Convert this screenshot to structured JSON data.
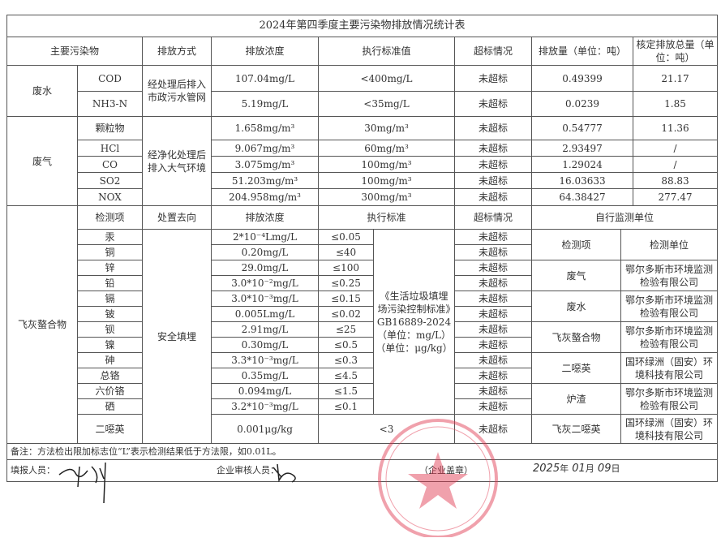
{
  "title": "2024年第四季度主要污染物排放情况统计表",
  "top_headers": {
    "pollutant": "主要污染物",
    "method": "排放方式",
    "conc": "排放浓度",
    "standard": "执行标准值",
    "exceed": "超标情况",
    "amount": "排放量（单位：吨）",
    "approved": "核定排放总量（单位：吨）"
  },
  "wastewater": {
    "label": "废水",
    "method": "经处理后排入市政污水管网",
    "rows": [
      {
        "item": "COD",
        "conc": "107.04mg/L",
        "std": "<400mg/L",
        "exceed": "未超标",
        "amount": "0.49399",
        "approved": "21.17"
      },
      {
        "item": "NH3-N",
        "conc": "5.19mg/L",
        "std": "<35mg/L",
        "exceed": "未超标",
        "amount": "0.0239",
        "approved": "1.85"
      }
    ]
  },
  "exhaust": {
    "label": "废气",
    "method": "经净化处理后排入大气环境",
    "rows": [
      {
        "item": "颗粒物",
        "conc": "1.658mg/m³",
        "std": "30mg/m³",
        "exceed": "未超标",
        "amount": "0.54777",
        "approved": "11.36"
      },
      {
        "item": "HCl",
        "conc": "9.067mg/m³",
        "std": "60mg/m³",
        "exceed": "未超标",
        "amount": "2.93497",
        "approved": "/"
      },
      {
        "item": "CO",
        "conc": "3.075mg/m³",
        "std": "100mg/m³",
        "exceed": "未超标",
        "amount": "1.29024",
        "approved": "/"
      },
      {
        "item": "SO2",
        "conc": "51.203mg/m³",
        "std": "100mg/m³",
        "exceed": "未超标",
        "amount": "16.03633",
        "approved": "88.83"
      },
      {
        "item": "NOX",
        "conc": "204.958mg/m³",
        "std": "300mg/m³",
        "exceed": "未超标",
        "amount": "64.38427",
        "approved": "277.47"
      }
    ]
  },
  "flyash": {
    "label": "飞灰螯合物",
    "method": "安全填埋",
    "headers": {
      "item": "检测项",
      "method": "处置去向",
      "conc": "排放浓度",
      "standard": "执行标准",
      "exceed": "超标情况",
      "monitor": "自行监测单位",
      "m_item": "检测项",
      "m_unit": "检测单位"
    },
    "standard_text": "《生活垃圾填埋场污染控制标准》GB16889-2024（单位：mg/L）（单位：μg/kg）",
    "rows": [
      {
        "item": "汞",
        "conc": "2*10⁻⁴Lmg/L",
        "limit": "≤0.05",
        "exceed": "未超标"
      },
      {
        "item": "铜",
        "conc": "0.20mg/L",
        "limit": "≤40",
        "exceed": "未超标"
      },
      {
        "item": "锌",
        "conc": "29.0mg/L",
        "limit": "≤100",
        "exceed": "未超标"
      },
      {
        "item": "铅",
        "conc": "3.0*10⁻²mg/L",
        "limit": "≤0.25",
        "exceed": "未超标"
      },
      {
        "item": "镉",
        "conc": "3.0*10⁻³mg/L",
        "limit": "≤0.15",
        "exceed": "未超标"
      },
      {
        "item": "铍",
        "conc": "0.005Lmg/L",
        "limit": "≤0.02",
        "exceed": "未超标"
      },
      {
        "item": "钡",
        "conc": "2.91mg/L",
        "limit": "≤25",
        "exceed": "未超标"
      },
      {
        "item": "镍",
        "conc": "0.30mg/L",
        "limit": "≤0.5",
        "exceed": "未超标"
      },
      {
        "item": "砷",
        "conc": "3.3*10⁻³mg/L",
        "limit": "≤0.3",
        "exceed": "未超标"
      },
      {
        "item": "总铬",
        "conc": "0.35mg/L",
        "limit": "≤4.5",
        "exceed": "未超标"
      },
      {
        "item": "六价铬",
        "conc": "0.094mg/L",
        "limit": "≤1.5",
        "exceed": "未超标"
      },
      {
        "item": "硒",
        "conc": "3.2*10⁻³mg/L",
        "limit": "≤0.1",
        "exceed": "未超标"
      },
      {
        "item": "二噁英",
        "conc": "0.001μg/kg",
        "limit": "<3",
        "exceed": "未超标"
      }
    ],
    "monitors": [
      {
        "item": "废气",
        "unit": "鄂尔多斯市环境监测检验有限公司"
      },
      {
        "item": "废水",
        "unit": "鄂尔多斯市环境监测检验有限公司"
      },
      {
        "item": "飞灰螯合物",
        "unit": "鄂尔多斯市环境监测检验有限公司"
      },
      {
        "item": "二噁英",
        "unit": "国环绿洲（固安）环境科技有限公司"
      },
      {
        "item": "炉渣",
        "unit": "鄂尔多斯市环境监测检验有限公司"
      },
      {
        "item": "飞灰二噁英",
        "unit": "国环绿洲（固安）环境科技有限公司"
      }
    ]
  },
  "note": "备注：方法检出限加标志位“L”表示检测结果低于方法限，如0.01L。",
  "footer": {
    "filler_label": "填报人员：",
    "reviewer_label": "企业审核人员：",
    "seal_label": "（企业盖章）",
    "date_year": "2025",
    "date_year_suffix": "年",
    "date_month": "01",
    "date_month_suffix": "月",
    "date_day": "09",
    "date_day_suffix": "日"
  },
  "colors": {
    "stamp": "#e0304a",
    "border": "#555555"
  }
}
